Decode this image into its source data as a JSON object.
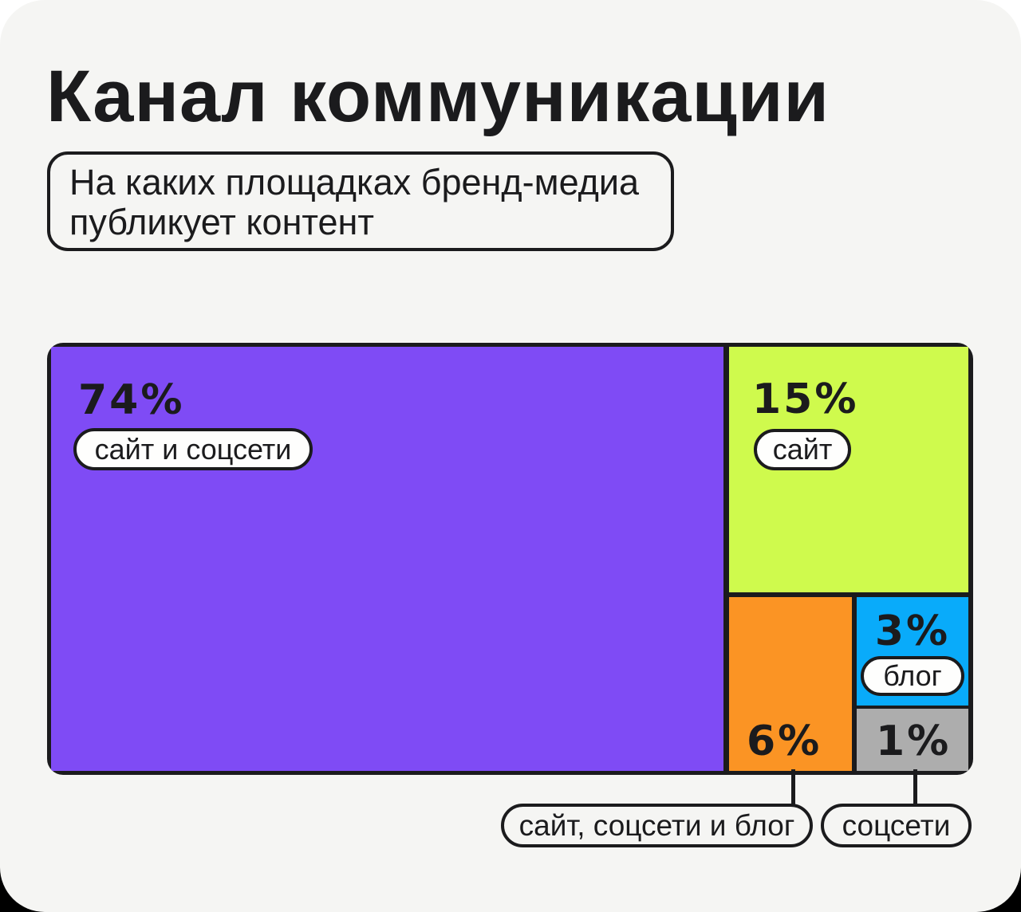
{
  "page": {
    "title": "Канал коммуникации",
    "subtitle_line1": "На каких площадках бренд-медиа",
    "subtitle_line2": "публикует контент",
    "background": "#F5F5F3",
    "text_color": "#1B1B1D"
  },
  "chart_data": {
    "type": "treemap",
    "title": "Канал коммуникации",
    "question": "На каких площадках бренд-медиа публикует контент",
    "segments": [
      {
        "label": "сайт и соцсети",
        "value_pct": 74,
        "pct_label": "74%",
        "color": "#7F4BF5",
        "label_placement": "inside"
      },
      {
        "label": "сайт",
        "value_pct": 15,
        "pct_label": "15%",
        "color": "#CFFA4D",
        "label_placement": "inside"
      },
      {
        "label": "сайт, соцсети и блог",
        "value_pct": 6,
        "pct_label": "6%",
        "color": "#FB9424",
        "label_placement": "callout-below"
      },
      {
        "label": "блог",
        "value_pct": 3,
        "pct_label": "3%",
        "color": "#09ABFA",
        "label_placement": "inside"
      },
      {
        "label": "соцсети",
        "value_pct": 1,
        "pct_label": "1%",
        "color": "#ADADAD",
        "label_placement": "callout-below"
      }
    ]
  }
}
